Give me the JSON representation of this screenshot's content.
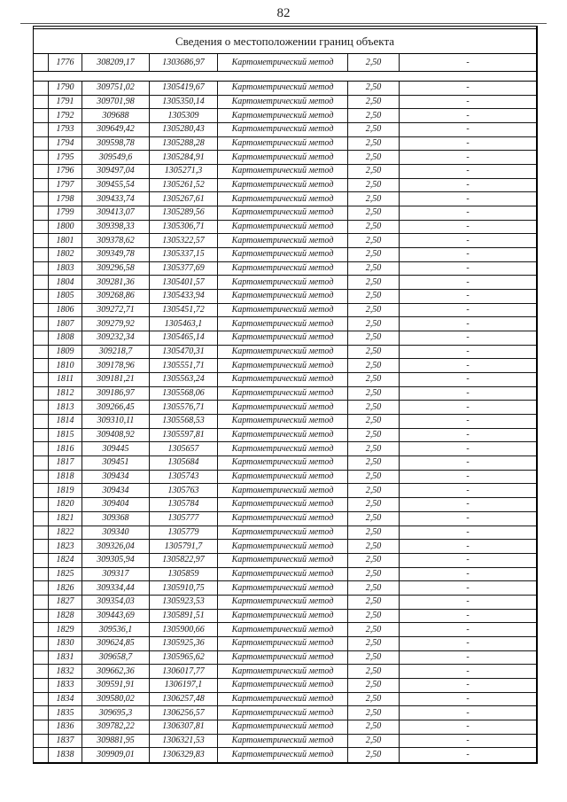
{
  "page": {
    "number": "82"
  },
  "table": {
    "title": "Сведения о местоположении границ объекта",
    "first_row": {
      "n": "1776",
      "x": "308209,17",
      "y": "1303686,97",
      "method": "Картометрический метод",
      "precision": "2,50",
      "note": "-"
    },
    "rows": [
      {
        "n": "1790",
        "x": "309751,02",
        "y": "1305419,67",
        "method": "Картометрический метод",
        "precision": "2,50",
        "note": "-"
      },
      {
        "n": "1791",
        "x": "309701,98",
        "y": "1305350,14",
        "method": "Картометрический метод",
        "precision": "2,50",
        "note": "-"
      },
      {
        "n": "1792",
        "x": "309688",
        "y": "1305309",
        "method": "Картометрический метод",
        "precision": "2,50",
        "note": "-"
      },
      {
        "n": "1793",
        "x": "309649,42",
        "y": "1305280,43",
        "method": "Картометрический метод",
        "precision": "2,50",
        "note": "-"
      },
      {
        "n": "1794",
        "x": "309598,78",
        "y": "1305288,28",
        "method": "Картометрический метод",
        "precision": "2,50",
        "note": "-"
      },
      {
        "n": "1795",
        "x": "309549,6",
        "y": "1305284,91",
        "method": "Картометрический метод",
        "precision": "2,50",
        "note": "-"
      },
      {
        "n": "1796",
        "x": "309497,04",
        "y": "1305271,3",
        "method": "Картометрический метод",
        "precision": "2,50",
        "note": "-"
      },
      {
        "n": "1797",
        "x": "309455,54",
        "y": "1305261,52",
        "method": "Картометрический метод",
        "precision": "2,50",
        "note": "-"
      },
      {
        "n": "1798",
        "x": "309433,74",
        "y": "1305267,61",
        "method": "Картометрический метод",
        "precision": "2,50",
        "note": "-"
      },
      {
        "n": "1799",
        "x": "309413,07",
        "y": "1305289,56",
        "method": "Картометрический метод",
        "precision": "2,50",
        "note": "-"
      },
      {
        "n": "1800",
        "x": "309398,33",
        "y": "1305306,71",
        "method": "Картометрический метод",
        "precision": "2,50",
        "note": "-"
      },
      {
        "n": "1801",
        "x": "309378,62",
        "y": "1305322,57",
        "method": "Картометрический метод",
        "precision": "2,50",
        "note": "-"
      },
      {
        "n": "1802",
        "x": "309349,78",
        "y": "1305337,15",
        "method": "Картометрический метод",
        "precision": "2,50",
        "note": "-"
      },
      {
        "n": "1803",
        "x": "309296,58",
        "y": "1305377,69",
        "method": "Картометрический метод",
        "precision": "2,50",
        "note": "-"
      },
      {
        "n": "1804",
        "x": "309281,36",
        "y": "1305401,57",
        "method": "Картометрический метод",
        "precision": "2,50",
        "note": "-"
      },
      {
        "n": "1805",
        "x": "309268,86",
        "y": "1305433,94",
        "method": "Картометрический метод",
        "precision": "2,50",
        "note": "-"
      },
      {
        "n": "1806",
        "x": "309272,71",
        "y": "1305451,72",
        "method": "Картометрический метод",
        "precision": "2,50",
        "note": "-"
      },
      {
        "n": "1807",
        "x": "309279,92",
        "y": "1305463,1",
        "method": "Картометрический метод",
        "precision": "2,50",
        "note": "-"
      },
      {
        "n": "1808",
        "x": "309232,34",
        "y": "1305465,14",
        "method": "Картометрический метод",
        "precision": "2,50",
        "note": "-"
      },
      {
        "n": "1809",
        "x": "309218,7",
        "y": "1305470,31",
        "method": "Картометрический метод",
        "precision": "2,50",
        "note": "-"
      },
      {
        "n": "1810",
        "x": "309178,96",
        "y": "1305551,71",
        "method": "Картометрический метод",
        "precision": "2,50",
        "note": "-"
      },
      {
        "n": "1811",
        "x": "309181,21",
        "y": "1305563,24",
        "method": "Картометрический метод",
        "precision": "2,50",
        "note": "-"
      },
      {
        "n": "1812",
        "x": "309186,97",
        "y": "1305568,06",
        "method": "Картометрический метод",
        "precision": "2,50",
        "note": "-"
      },
      {
        "n": "1813",
        "x": "309266,45",
        "y": "1305576,71",
        "method": "Картометрический метод",
        "precision": "2,50",
        "note": "-"
      },
      {
        "n": "1814",
        "x": "309310,11",
        "y": "1305568,53",
        "method": "Картометрический метод",
        "precision": "2,50",
        "note": "-"
      },
      {
        "n": "1815",
        "x": "309408,92",
        "y": "1305597,81",
        "method": "Картометрический метод",
        "precision": "2,50",
        "note": "-"
      },
      {
        "n": "1816",
        "x": "309445",
        "y": "1305657",
        "method": "Картометрический метод",
        "precision": "2,50",
        "note": "-"
      },
      {
        "n": "1817",
        "x": "309451",
        "y": "1305684",
        "method": "Картометрический метод",
        "precision": "2,50",
        "note": "-"
      },
      {
        "n": "1818",
        "x": "309434",
        "y": "1305743",
        "method": "Картометрический метод",
        "precision": "2,50",
        "note": "-"
      },
      {
        "n": "1819",
        "x": "309434",
        "y": "1305763",
        "method": "Картометрический метод",
        "precision": "2,50",
        "note": "-"
      },
      {
        "n": "1820",
        "x": "309404",
        "y": "1305784",
        "method": "Картометрический метод",
        "precision": "2,50",
        "note": "-"
      },
      {
        "n": "1821",
        "x": "309368",
        "y": "1305777",
        "method": "Картометрический метод",
        "precision": "2,50",
        "note": "-"
      },
      {
        "n": "1822",
        "x": "309340",
        "y": "1305779",
        "method": "Картометрический метод",
        "precision": "2,50",
        "note": "-"
      },
      {
        "n": "1823",
        "x": "309326,04",
        "y": "1305791,7",
        "method": "Картометрический метод",
        "precision": "2,50",
        "note": "-"
      },
      {
        "n": "1824",
        "x": "309305,94",
        "y": "1305822,97",
        "method": "Картометрический метод",
        "precision": "2,50",
        "note": "-"
      },
      {
        "n": "1825",
        "x": "309317",
        "y": "1305859",
        "method": "Картометрический метод",
        "precision": "2,50",
        "note": "-"
      },
      {
        "n": "1826",
        "x": "309334,44",
        "y": "1305910,75",
        "method": "Картометрический метод",
        "precision": "2,50",
        "note": "-"
      },
      {
        "n": "1827",
        "x": "309354,03",
        "y": "1305923,53",
        "method": "Картометрический метод",
        "precision": "2,50",
        "note": "-"
      },
      {
        "n": "1828",
        "x": "309443,69",
        "y": "1305891,51",
        "method": "Картометрический метод",
        "precision": "2,50",
        "note": "-"
      },
      {
        "n": "1829",
        "x": "309536,1",
        "y": "1305900,66",
        "method": "Картометрический метод",
        "precision": "2,50",
        "note": "-"
      },
      {
        "n": "1830",
        "x": "309624,85",
        "y": "1305925,36",
        "method": "Картометрический метод",
        "precision": "2,50",
        "note": "-"
      },
      {
        "n": "1831",
        "x": "309658,7",
        "y": "1305965,62",
        "method": "Картометрический метод",
        "precision": "2,50",
        "note": "-"
      },
      {
        "n": "1832",
        "x": "309662,36",
        "y": "1306017,77",
        "method": "Картометрический метод",
        "precision": "2,50",
        "note": "-"
      },
      {
        "n": "1833",
        "x": "309591,91",
        "y": "1306197,1",
        "method": "Картометрический метод",
        "precision": "2,50",
        "note": "-"
      },
      {
        "n": "1834",
        "x": "309580,02",
        "y": "1306257,48",
        "method": "Картометрический метод",
        "precision": "2,50",
        "note": "-"
      },
      {
        "n": "1835",
        "x": "309695,3",
        "y": "1306256,57",
        "method": "Картометрический метод",
        "precision": "2,50",
        "note": "-"
      },
      {
        "n": "1836",
        "x": "309782,22",
        "y": "1306307,81",
        "method": "Картометрический метод",
        "precision": "2,50",
        "note": "-"
      },
      {
        "n": "1837",
        "x": "309881,95",
        "y": "1306321,53",
        "method": "Картометрический метод",
        "precision": "2,50",
        "note": "-"
      },
      {
        "n": "1838",
        "x": "309909,01",
        "y": "1306329,83",
        "method": "Картометрический метод",
        "precision": "2,50",
        "note": "-"
      }
    ]
  }
}
